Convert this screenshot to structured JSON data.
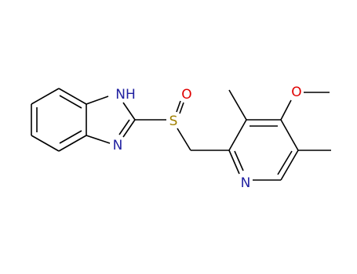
{
  "atoms": {
    "nh": "NH",
    "n_imidazole": "N",
    "s": "S",
    "o_sulfinyl": "O",
    "o_methoxy": "O",
    "n_pyridine": "N"
  }
}
